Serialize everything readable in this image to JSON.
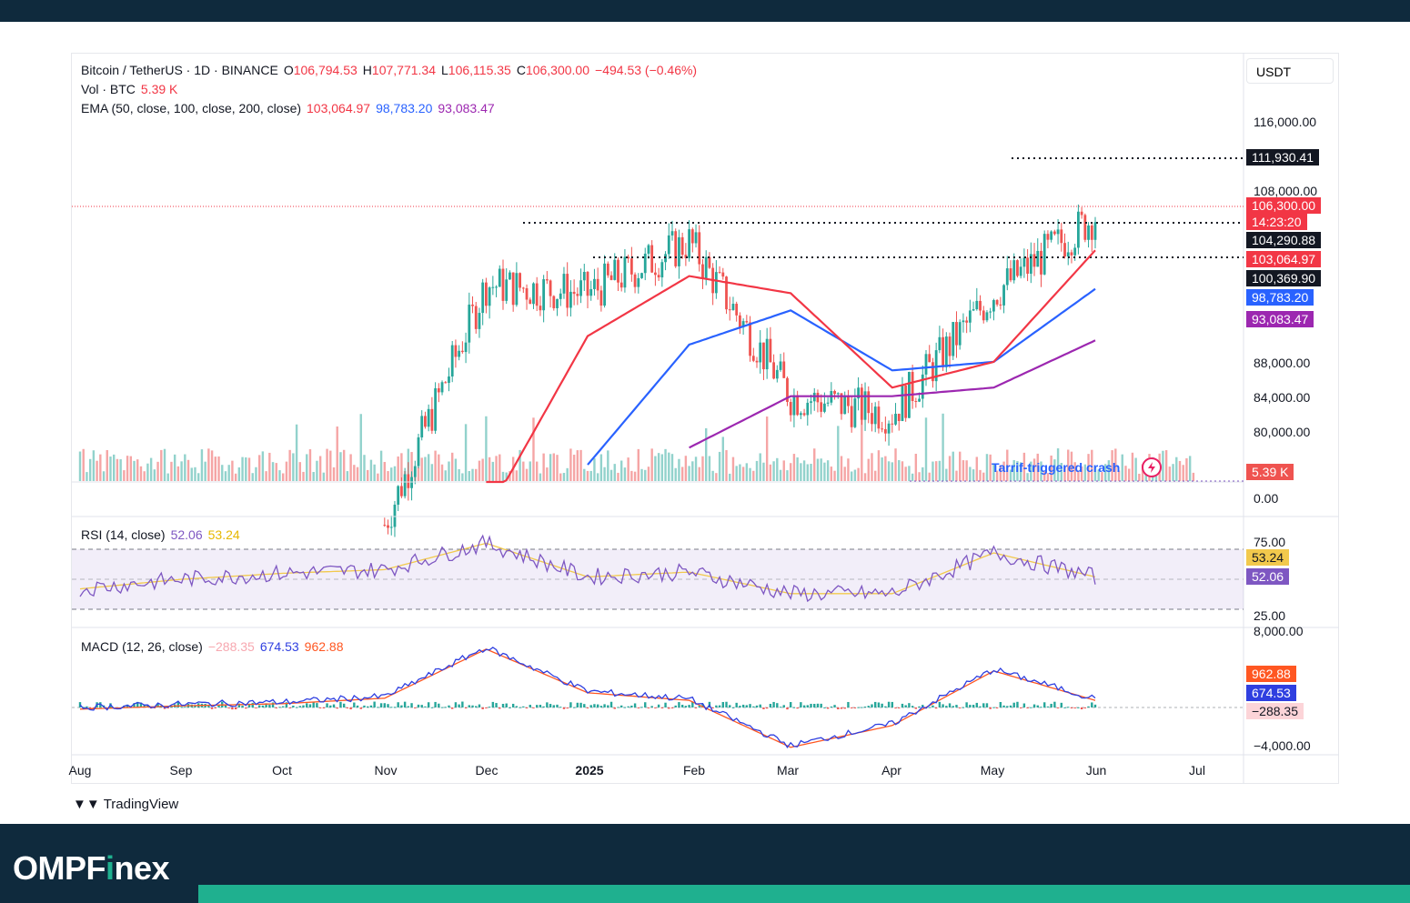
{
  "header": {
    "symbol": "Bitcoin / TetherUS · 1D · BINANCE",
    "open_label": "O",
    "open": "106,794.53",
    "high_label": "H",
    "high": "107,771.34",
    "low_label": "L",
    "low": "106,115.35",
    "close_label": "C",
    "close": "106,300.00",
    "change": "−494.53 (−0.46%)",
    "vol_label": "Vol · BTC",
    "vol": "5.39 K",
    "ema_label": "EMA (50, close, 100, close, 200, close)",
    "ema50": "103,064.97",
    "ema100": "98,783.20",
    "ema200": "93,083.47",
    "rsi_label": "RSI (14, close)",
    "rsi": "52.06",
    "rsi_ma": "53.24",
    "macd_label": "MACD (12, 26, close)",
    "macd_hist": "−288.35",
    "macd": "674.53",
    "macd_signal": "962.88"
  },
  "currency_button": "USDT",
  "price_axis": [
    "116,000.00",
    "108,000.00",
    "88,000.00",
    "84,000.00",
    "80,000.00",
    "0.00"
  ],
  "price_tags": {
    "high_line": "111,930.41",
    "last_price": "106,300.00",
    "countdown": "14:23:20",
    "support1": "104,290.88",
    "ema50": "103,064.97",
    "support2": "100,369.90",
    "ema100": "98,783.20",
    "ema200": "93,083.47",
    "volume": "5.39 K"
  },
  "rsi_axis": [
    "75.00",
    "25.00"
  ],
  "macd_axis": [
    "8,000.00",
    "−4,000.00"
  ],
  "x_axis": [
    "Aug",
    "Sep",
    "Oct",
    "Nov",
    "Dec",
    "2025",
    "Feb",
    "Mar",
    "Apr",
    "May",
    "Jun",
    "Jul"
  ],
  "annotation": "Tarrif-triggered crash",
  "branding": {
    "tradingview": "TradingView",
    "logo_left": "OMPF",
    "logo_i": "i",
    "logo_right": "nex"
  },
  "colors": {
    "up": "#26a69a",
    "down": "#ef5350",
    "ema50": "#f23645",
    "ema100": "#2962ff",
    "ema200": "#9c27b0",
    "rsi": "#7e57c2",
    "rsi_ma": "#f2c94c",
    "brand_bg": "#0f2a3d",
    "brand_accent": "#1fb08f"
  },
  "chart_data": {
    "type": "line",
    "title": "Bitcoin / TetherUS · 1D · BINANCE",
    "x": [
      "Aug",
      "Sep",
      "Oct",
      "Nov",
      "Dec",
      "2025",
      "Feb",
      "Mar",
      "Apr",
      "May",
      "Jun",
      "Jul"
    ],
    "series": [
      {
        "name": "Bitcoin / TetherUS",
        "values": [
          null,
          null,
          null,
          69000,
          97000,
          96000,
          102000,
          84000,
          82000,
          96000,
          105000,
          null
        ]
      },
      {
        "name": "EMA 50",
        "values": [
          null,
          null,
          null,
          null,
          70000,
          91000,
          98000,
          96000,
          85000,
          88000,
          101000,
          null
        ]
      },
      {
        "name": "EMA 100",
        "values": [
          null,
          null,
          null,
          null,
          null,
          76000,
          90000,
          94000,
          87000,
          88000,
          96500,
          null
        ]
      },
      {
        "name": "EMA 200",
        "values": [
          null,
          null,
          null,
          null,
          null,
          null,
          78000,
          84000,
          84000,
          85000,
          90500,
          null
        ]
      }
    ],
    "levels": [
      111930.41,
      104290.88,
      100369.9
    ],
    "ylim": [
      74000,
      120000
    ],
    "rsi": {
      "values": [
        42,
        50,
        55,
        58,
        80,
        52,
        56,
        38,
        38,
        72,
        52
      ],
      "bands": [
        75,
        25
      ]
    },
    "macd": {
      "macd": 674.53,
      "signal": 962.88,
      "hist": -288.35,
      "ylim": [
        -4000,
        8000
      ]
    }
  }
}
